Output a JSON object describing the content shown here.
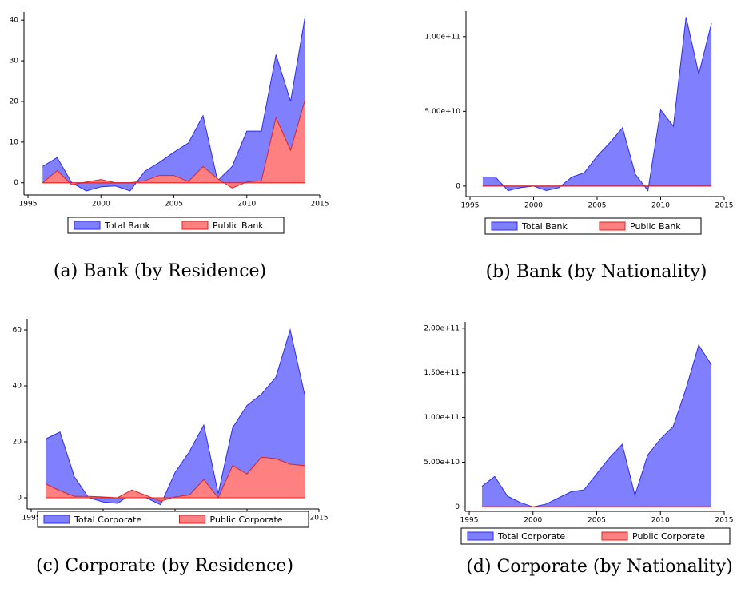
{
  "chart_data": [
    {
      "type": "area",
      "caption": "(a) Bank (by Residence)",
      "legend": "bottom",
      "x": [
        1996,
        1997,
        1998,
        1999,
        2000,
        2001,
        2002,
        2003,
        2004,
        2005,
        2006,
        2007,
        2008,
        2009,
        2010,
        2011,
        2012,
        2013,
        2014
      ],
      "xlim": [
        1995,
        2015
      ],
      "xticks": [
        1995,
        2000,
        2005,
        2010,
        2015
      ],
      "ylim": [
        -3,
        42
      ],
      "yticks": [
        0,
        10,
        20,
        30,
        40
      ],
      "series": [
        {
          "name": "Total Bank",
          "color": "#8080ff",
          "edge_color": "#2b2bff",
          "values": [
            4,
            6.2,
            0,
            -2,
            -1,
            -0.8,
            -2,
            2.8,
            5,
            7.5,
            9.8,
            16.5,
            0.5,
            4,
            12.7,
            12.7,
            31.5,
            20,
            41
          ]
        },
        {
          "name": "Public Bank",
          "color": "#ff8080",
          "edge_color": "#e02020",
          "values": [
            0,
            3,
            -0.5,
            0.2,
            0.8,
            0,
            0,
            0.5,
            1.8,
            1.8,
            0.3,
            4,
            1,
            -1.3,
            0.2,
            0.5,
            16,
            8,
            20.5
          ]
        }
      ]
    },
    {
      "type": "area",
      "caption": "(b) Bank (by Nationality)",
      "legend": "bottom",
      "x": [
        1996,
        1997,
        1998,
        1999,
        2000,
        2001,
        2002,
        2003,
        2004,
        2005,
        2006,
        2007,
        2008,
        2009,
        2010,
        2011,
        2012,
        2013,
        2014
      ],
      "xlim": [
        1995,
        2015
      ],
      "xticks": [
        1995,
        2000,
        2005,
        2010,
        2015
      ],
      "ylim": [
        -7000000000,
        117000000000
      ],
      "yticks": [
        0,
        {
          "value": 50000000000,
          "label": "5.00e+10"
        },
        {
          "value": 100000000000,
          "label": "1.00e+11"
        }
      ],
      "series": [
        {
          "name": "Total Bank",
          "color": "#8080ff",
          "edge_color": "#2b2bff",
          "values": [
            6000000000,
            6000000000,
            -3000000000,
            -1000000000,
            0,
            -3000000000,
            -1000000000,
            6000000000,
            9000000000,
            20000000000,
            29000000000,
            39000000000,
            8000000000,
            -3000000000,
            51000000000,
            40000000000,
            113000000000,
            75000000000,
            109000000000
          ]
        },
        {
          "name": "Public Bank",
          "color": "#ff8080",
          "edge_color": "#e02020",
          "values": [
            0,
            0,
            0,
            0,
            0,
            0,
            0,
            0,
            0,
            0,
            0,
            0,
            0,
            0,
            0,
            0,
            0,
            0,
            0
          ]
        }
      ]
    },
    {
      "type": "area",
      "caption": "(c) Corporate (by Residence)",
      "legend": "bottom",
      "x": [
        1996,
        1997,
        1998,
        1999,
        2000,
        2001,
        2002,
        2003,
        2004,
        2005,
        2006,
        2007,
        2008,
        2009,
        2010,
        2011,
        2012,
        2013,
        2014
      ],
      "xlim": [
        1995,
        2015
      ],
      "xticks": [
        1995,
        2000,
        2005,
        2010,
        2015
      ],
      "ylim": [
        -4,
        64
      ],
      "yticks": [
        0,
        20,
        40,
        60
      ],
      "series": [
        {
          "name": "Total Corporate",
          "color": "#8080ff",
          "edge_color": "#2b2bff",
          "values": [
            21,
            23.5,
            7.5,
            0,
            -1.5,
            -2,
            1.5,
            0,
            -2.5,
            9,
            16.5,
            26,
            1.5,
            25,
            33,
            37,
            43,
            60,
            37
          ]
        },
        {
          "name": "Public Corporate",
          "color": "#ff8080",
          "edge_color": "#e02020",
          "values": [
            5,
            2.5,
            0.5,
            0.5,
            0.3,
            0,
            2.8,
            0.8,
            -1.2,
            0.3,
            1,
            6.5,
            0,
            11.5,
            8.5,
            14.5,
            14,
            12,
            11.5
          ]
        }
      ]
    },
    {
      "type": "area",
      "caption": "(d) Corporate (by Nationality)",
      "legend": "bottom",
      "x": [
        1996,
        1997,
        1998,
        1999,
        2000,
        2001,
        2002,
        2003,
        2004,
        2005,
        2006,
        2007,
        2008,
        2009,
        2010,
        2011,
        2012,
        2013,
        2014
      ],
      "xlim": [
        1995,
        2015
      ],
      "xticks": [
        1995,
        2000,
        2005,
        2010,
        2015
      ],
      "ylim": [
        -5000000000,
        207000000000
      ],
      "yticks": [
        0,
        {
          "value": 50000000000,
          "label": "5.00e+10"
        },
        {
          "value": 100000000000,
          "label": "1.00e+11"
        },
        {
          "value": 150000000000,
          "label": "1.50e+11"
        },
        {
          "value": 200000000000,
          "label": "2.00e+11"
        }
      ],
      "series": [
        {
          "name": "Total Corporate",
          "color": "#8080ff",
          "edge_color": "#2b2bff",
          "values": [
            23000000000,
            34000000000,
            12000000000,
            5000000000,
            0,
            3000000000,
            10000000000,
            17000000000,
            19000000000,
            37000000000,
            55000000000,
            70000000000,
            13000000000,
            58000000000,
            76000000000,
            90000000000,
            132000000000,
            181000000000,
            159000000000
          ]
        },
        {
          "name": "Public Corporate",
          "color": "#ff8080",
          "edge_color": "#e02020",
          "values": [
            0,
            0,
            0,
            0,
            0,
            0,
            0,
            0,
            0,
            0,
            0,
            0,
            0,
            0,
            0,
            0,
            0,
            0,
            0
          ]
        }
      ]
    }
  ]
}
